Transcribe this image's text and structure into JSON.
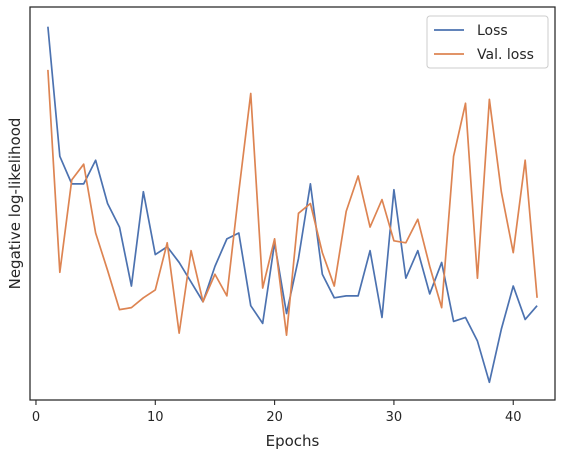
{
  "chart_data": {
    "type": "line",
    "title": "",
    "xlabel": "Epochs",
    "ylabel": "Negative log-likelihood",
    "xlim": [
      -0.5,
      43.5
    ],
    "ylim": [
      0,
      100
    ],
    "y_ticks_shown": false,
    "x_ticks": [
      0,
      10,
      20,
      30,
      40
    ],
    "x_tick_labels": [
      "0",
      "10",
      "20",
      "30",
      "40"
    ],
    "grid": false,
    "legend_position": "top-right",
    "x": [
      1,
      2,
      3,
      4,
      5,
      6,
      7,
      8,
      9,
      10,
      11,
      12,
      13,
      14,
      15,
      16,
      17,
      18,
      19,
      20,
      21,
      22,
      23,
      24,
      25,
      26,
      27,
      28,
      29,
      30,
      31,
      32,
      33,
      34,
      35,
      36,
      37,
      38,
      39,
      40,
      41,
      42
    ],
    "series": [
      {
        "name": "Loss",
        "color": "#4c72b0",
        "values": [
          95.0,
          62.0,
          55.0,
          55.0,
          61.0,
          50.0,
          44.0,
          29.0,
          53.0,
          37.0,
          39.0,
          35.0,
          30.0,
          25.0,
          34.0,
          41.0,
          42.5,
          24.0,
          19.5,
          40.0,
          22.0,
          36.0,
          55.0,
          32.0,
          26.0,
          26.5,
          26.5,
          38.0,
          21.0,
          53.5,
          31.0,
          38.0,
          27.0,
          35.0,
          20.0,
          21.0,
          15.0,
          4.5,
          18.0,
          29.0,
          20.5,
          24.0
        ]
      },
      {
        "name": "Val. loss",
        "color": "#dd8452",
        "values": [
          84.0,
          32.5,
          56.0,
          60.0,
          42.5,
          33.0,
          23.0,
          23.5,
          26.0,
          28.0,
          40.0,
          17.0,
          38.0,
          25.0,
          32.0,
          26.5,
          53.0,
          78.0,
          28.5,
          41.0,
          16.5,
          47.5,
          50.0,
          37.5,
          29.0,
          48.0,
          57.0,
          44.0,
          51.0,
          40.5,
          40.0,
          46.0,
          34.0,
          23.5,
          62.0,
          75.5,
          31.0,
          76.5,
          53.0,
          37.5,
          61.0,
          26.0
        ]
      }
    ]
  }
}
